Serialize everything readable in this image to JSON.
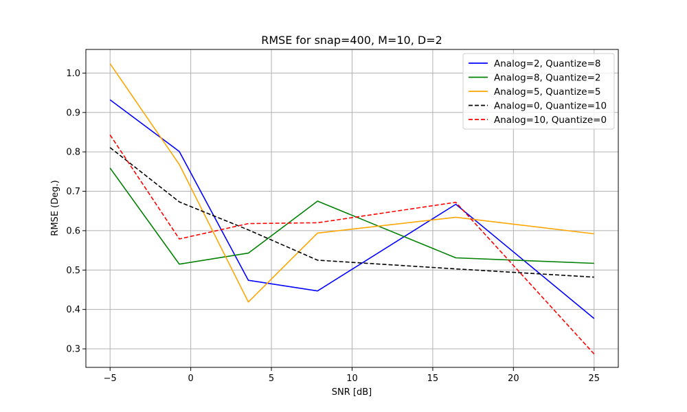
{
  "chart_data": {
    "type": "line",
    "title": "RMSE for snap=400, M=10, D=2",
    "xlabel": "SNR [dB]",
    "ylabel": "RMSE (Deg.)",
    "xlim": [
      -6.5,
      26.5
    ],
    "ylim": [
      0.253,
      1.06
    ],
    "xticks": [
      -5,
      0,
      5,
      10,
      15,
      20,
      25
    ],
    "yticks": [
      0.3,
      0.4,
      0.5,
      0.6,
      0.7,
      0.8,
      0.9,
      1.0
    ],
    "xtick_labels": [
      "−5",
      "0",
      "5",
      "10",
      "15",
      "20",
      "25"
    ],
    "ytick_labels": [
      "0.3",
      "0.4",
      "0.5",
      "0.6",
      "0.7",
      "0.8",
      "0.9",
      "1.0"
    ],
    "grid": true,
    "legend_position": "top-right",
    "x": [
      -5,
      -0.71,
      3.57,
      7.86,
      12.14,
      16.43,
      20.71,
      25
    ],
    "series": [
      {
        "name": "Analog=2, Quantize=8",
        "color": "#0000ff",
        "dash": "solid",
        "points": [
          [
            -5,
            0.932
          ],
          [
            -0.71,
            0.801
          ],
          [
            3.57,
            0.474
          ],
          [
            7.86,
            0.447
          ],
          [
            16.43,
            0.667
          ],
          [
            25,
            0.377
          ]
        ]
      },
      {
        "name": "Analog=8, Quantize=2",
        "color": "#008000",
        "dash": "solid",
        "points": [
          [
            -5,
            0.759
          ],
          [
            -0.71,
            0.515
          ],
          [
            3.57,
            0.543
          ],
          [
            7.86,
            0.675
          ],
          [
            16.43,
            0.531
          ],
          [
            25,
            0.517
          ]
        ]
      },
      {
        "name": "Analog=5, Quantize=5",
        "color": "#ffa500",
        "dash": "solid",
        "points": [
          [
            -5,
            1.024
          ],
          [
            -0.71,
            0.768
          ],
          [
            3.57,
            0.419
          ],
          [
            7.86,
            0.594
          ],
          [
            16.43,
            0.634
          ],
          [
            25,
            0.592
          ]
        ]
      },
      {
        "name": "Analog=0, Quantize=10",
        "color": "#000000",
        "dash": "dashed",
        "points": [
          [
            -5,
            0.811
          ],
          [
            -0.71,
            0.673
          ],
          [
            3.57,
            0.602
          ],
          [
            7.86,
            0.525
          ],
          [
            16.43,
            0.503
          ],
          [
            25,
            0.482
          ]
        ]
      },
      {
        "name": "Analog=10, Quantize=0",
        "color": "#ff0000",
        "dash": "dashed",
        "points": [
          [
            -5,
            0.843
          ],
          [
            -0.71,
            0.579
          ],
          [
            3.57,
            0.618
          ],
          [
            7.86,
            0.62
          ],
          [
            16.43,
            0.672
          ],
          [
            25,
            0.287
          ]
        ]
      }
    ]
  }
}
